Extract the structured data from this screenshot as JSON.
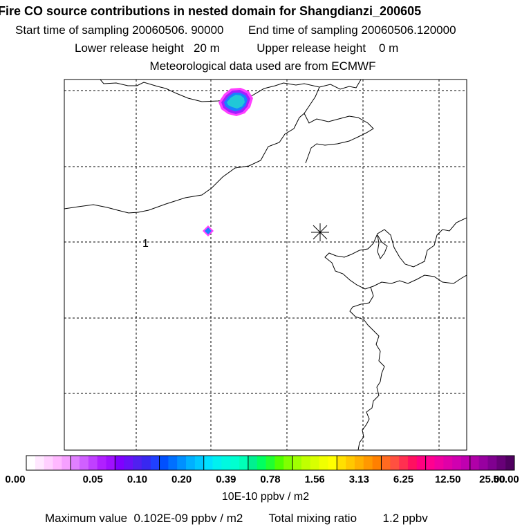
{
  "chart_data": {
    "type": "heatmap",
    "title": "Fire CO source contributions in nested domain for Shangdianzi_200605",
    "start_label": "Start time of sampling",
    "start_value": "20060506. 90000",
    "end_label": "End time of sampling",
    "end_value": "20060506.120000",
    "lower_label": "Lower release height",
    "lower_value": "20 m",
    "upper_label": "Upper release height",
    "upper_value": "0 m",
    "met_text": "Meteorological data used are from ECMWF",
    "marker_label": "1",
    "colorbar": {
      "tick_labels": [
        "0.00",
        "0.05",
        "0.10",
        "0.20",
        "0.39",
        "0.78",
        "1.56",
        "3.13",
        "6.25",
        "12.50",
        "25.00",
        "50.00"
      ],
      "units": "10E-10 ppbv / m2"
    },
    "max_label": "Maximum value",
    "max_value": "0.102E-09 ppbv / m2",
    "total_label": "Total mixing ratio",
    "total_value": "1.2 ppbv",
    "colors": {
      "bins": [
        [
          "#ffffff",
          "#ffe8ff",
          "#ffd0ff",
          "#ffb8ff",
          "#f6a0ff"
        ],
        [
          "#e080ff",
          "#d060ff",
          "#c040ff",
          "#b020ff",
          "#a010ff"
        ],
        [
          "#8000ff",
          "#6a10f8",
          "#5020f0",
          "#3828f0",
          "#2040ff"
        ],
        [
          "#0050ff",
          "#0070ff",
          "#0090ff",
          "#00b0ff",
          "#00c8ff"
        ],
        [
          "#00e0ff",
          "#00f0f0",
          "#00f8e0",
          "#00ffd0",
          "#00ffb8"
        ],
        [
          "#00f090",
          "#00ff60",
          "#20ff30",
          "#50ff00",
          "#80ff00"
        ],
        [
          "#a0ff00",
          "#c0ff00",
          "#d8ff00",
          "#f0ff00",
          "#ffff00"
        ],
        [
          "#ffe000",
          "#ffc800",
          "#ffb000",
          "#ff9800",
          "#ff8000"
        ],
        [
          "#ff6a20",
          "#ff5040",
          "#ff3050",
          "#ff1060",
          "#ff0080"
        ],
        [
          "#ff0090",
          "#f000a0",
          "#e000a8",
          "#d000b0",
          "#c000b0"
        ],
        [
          "#b000a8",
          "#9800a0",
          "#800090",
          "#680078",
          "#500060"
        ]
      ],
      "blob_core": "#20c8d8",
      "blob_mid": "#1880ff",
      "blob_edge": "#a020ff",
      "blob_halo": "#ff40ff"
    }
  }
}
